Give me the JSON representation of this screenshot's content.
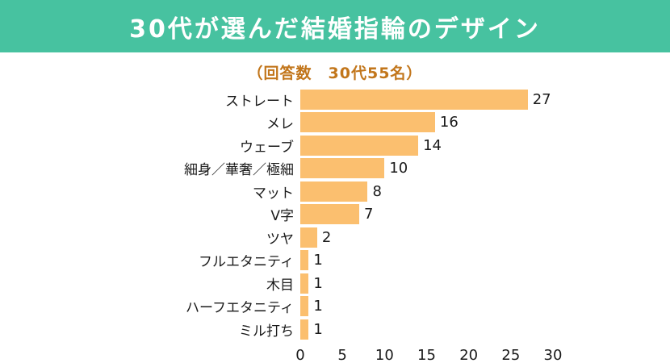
{
  "header": {
    "title": "30代が選んだ結婚指輪のデザイン",
    "subtitle": "（回答数　30代55名）"
  },
  "colors": {
    "banner_bg": "#47C2A0",
    "title_text": "#FFFFFF",
    "subtitle_text": "#C2761B",
    "bar": "#FBBF6F",
    "label_text": "#1A1A1A",
    "page_bg": "#FFFFFF"
  },
  "chart_data": {
    "type": "bar",
    "orientation": "horizontal",
    "title": "30代が選んだ結婚指輪のデザイン",
    "subtitle": "（回答数　30代55名）",
    "categories": [
      "ストレート",
      "メレ",
      "ウェーブ",
      "細身／華奢／極細",
      "マット",
      "V字",
      "ツヤ",
      "フルエタニティ",
      "木目",
      "ハーフエタニティ",
      "ミル打ち"
    ],
    "values": [
      27,
      16,
      14,
      10,
      8,
      7,
      2,
      1,
      1,
      1,
      1
    ],
    "xlabel": "",
    "ylabel": "",
    "xlim": [
      0,
      30
    ],
    "xticks": [
      0,
      5,
      10,
      15,
      20,
      25,
      30
    ],
    "grid": false,
    "legend": false,
    "bar_color": "#FBBF6F",
    "value_labels_shown": true
  }
}
